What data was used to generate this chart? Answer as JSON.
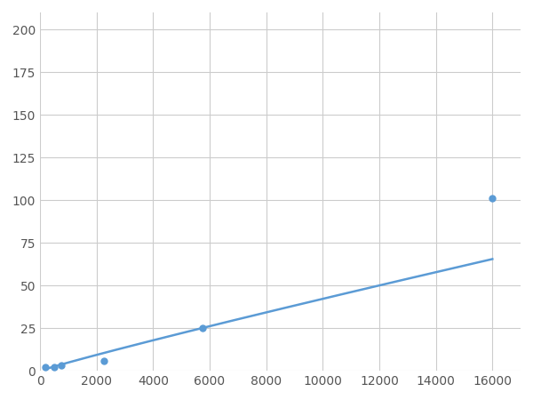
{
  "x_data": [
    200,
    500,
    750,
    2250,
    5750,
    16000
  ],
  "y_data": [
    2,
    2,
    3,
    6,
    25,
    101
  ],
  "line_color": "#5b9bd5",
  "marker_color": "#5b9bd5",
  "marker_size": 5,
  "xlim": [
    0,
    17000
  ],
  "ylim": [
    0,
    210
  ],
  "xticks": [
    0,
    2000,
    4000,
    6000,
    8000,
    10000,
    12000,
    14000,
    16000
  ],
  "yticks": [
    0,
    25,
    50,
    75,
    100,
    125,
    150,
    175,
    200
  ],
  "grid_color": "#cccccc",
  "background_color": "#ffffff",
  "linewidth": 1.8
}
